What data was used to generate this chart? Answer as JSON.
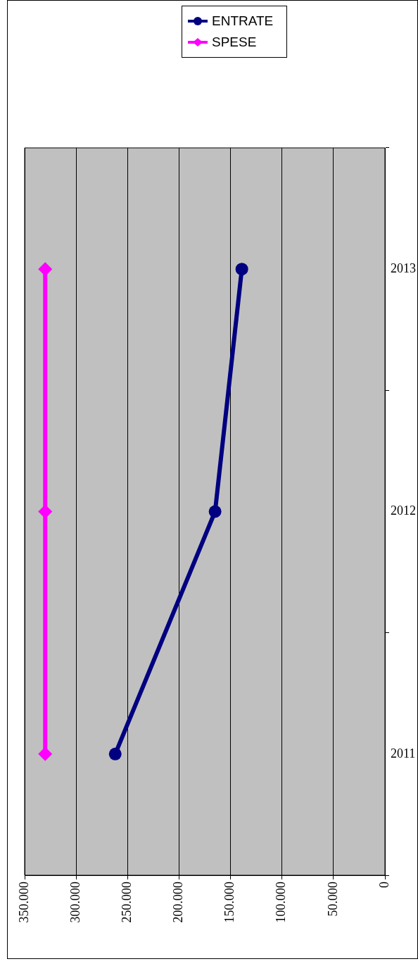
{
  "chart_data": {
    "type": "line",
    "orientation": "horizontal",
    "categories": [
      "2013",
      "2012",
      "2011"
    ],
    "series": [
      {
        "name": "ENTRATE",
        "color": "#000080",
        "marker": "circle",
        "values": [
          139000,
          165000,
          262000
        ]
      },
      {
        "name": "SPESE",
        "color": "#ff00ff",
        "marker": "diamond",
        "values": [
          330000,
          330000,
          330000
        ]
      }
    ],
    "xlim": [
      350000,
      0
    ],
    "xticks": [
      {
        "value": 350000,
        "label": "350.000"
      },
      {
        "value": 300000,
        "label": "300.000"
      },
      {
        "value": 250000,
        "label": "250.000"
      },
      {
        "value": 200000,
        "label": "200.000"
      },
      {
        "value": 150000,
        "label": "150.000"
      },
      {
        "value": 100000,
        "label": "100.000"
      },
      {
        "value": 50000,
        "label": "50.000"
      },
      0
    ],
    "grid": "x",
    "legend": "top right",
    "line_style": "solid"
  }
}
